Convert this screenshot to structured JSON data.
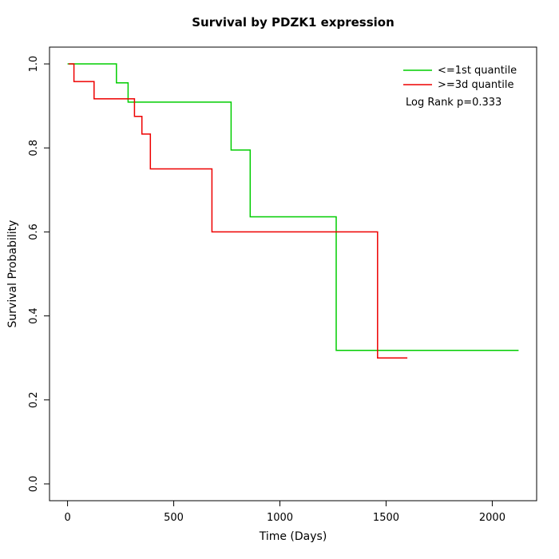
{
  "chart_data": {
    "type": "line",
    "subtype": "kaplan-meier-step",
    "title": "Survival by PDZK1 expression",
    "xlabel": "Time (Days)",
    "ylabel": "Survival Probability",
    "x_ticks": [
      0,
      500,
      1000,
      1500,
      2000
    ],
    "x_tick_labels": [
      "0",
      "500",
      "1000",
      "1500",
      "2000"
    ],
    "y_ticks": [
      0.0,
      0.2,
      0.4,
      0.6,
      0.8,
      1.0
    ],
    "y_tick_labels": [
      "0.0",
      "0.2",
      "0.4",
      "0.6",
      "0.8",
      "1.0"
    ],
    "xlim": [
      0,
      2124
    ],
    "ylim": [
      0,
      1
    ],
    "grid": false,
    "legend": {
      "position": "top-right-inside",
      "entries": [
        {
          "label": "<=1st quantile",
          "color": "#00CD00"
        },
        {
          "label": ">=3d quantile",
          "color": "#EE0000"
        }
      ],
      "annotation": "Log Rank p=0.333"
    },
    "series": [
      {
        "name": "<=1st quantile",
        "color": "#00CD00",
        "step": "post",
        "points": [
          [
            0,
            1.0
          ],
          [
            230,
            0.955
          ],
          [
            285,
            0.909
          ],
          [
            770,
            0.795
          ],
          [
            860,
            0.636
          ],
          [
            1265,
            0.318
          ],
          [
            2124,
            0.318
          ]
        ]
      },
      {
        "name": ">=3d quantile",
        "color": "#EE0000",
        "step": "post",
        "points": [
          [
            5,
            1.0
          ],
          [
            30,
            0.958
          ],
          [
            125,
            0.917
          ],
          [
            315,
            0.875
          ],
          [
            350,
            0.833
          ],
          [
            390,
            0.75
          ],
          [
            680,
            0.6
          ],
          [
            1460,
            0.3
          ],
          [
            1600,
            0.3
          ]
        ]
      }
    ]
  }
}
